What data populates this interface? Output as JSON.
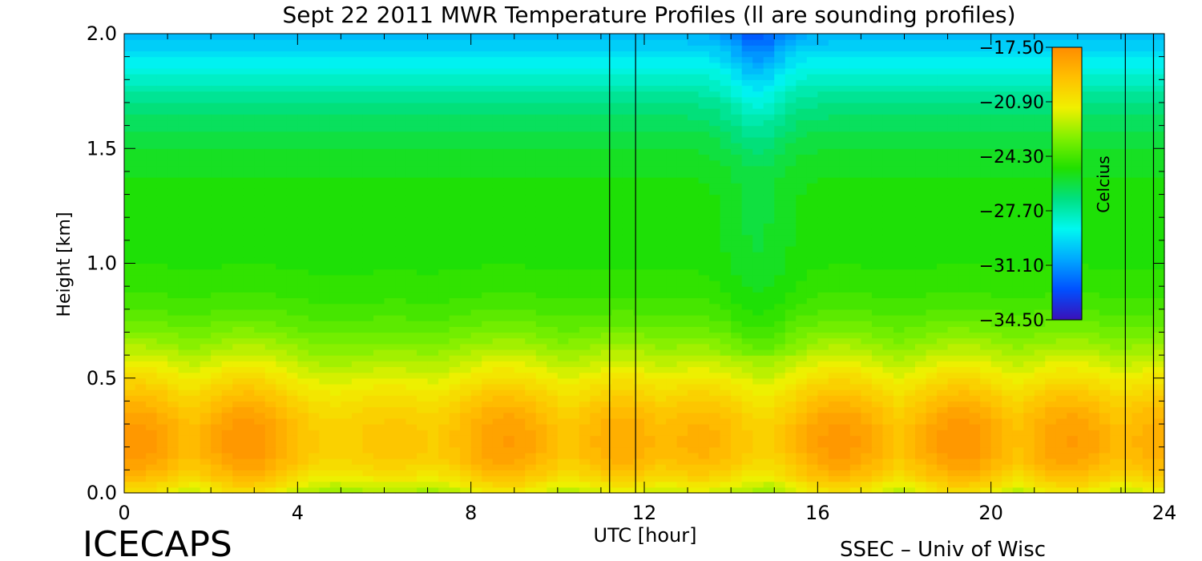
{
  "footer": {
    "left": "ICECAPS",
    "right": "SSEC – Univ of Wisc"
  },
  "chart_data": {
    "type": "heatmap",
    "title": "Sept 22 2011 MWR Temperature Profiles (ll are sounding profiles)",
    "xlabel": "UTC [hour]",
    "ylabel": "Height [km]",
    "xlim": [
      0,
      24
    ],
    "ylim": [
      0,
      2
    ],
    "x_ticks": [
      0,
      4,
      8,
      12,
      16,
      20,
      24
    ],
    "y_ticks": [
      0.0,
      0.5,
      1.0,
      1.5,
      2.0
    ],
    "y_tick_labels": [
      "0.0",
      "0.5",
      "1.0",
      "1.5",
      "2.0"
    ],
    "colorbar": {
      "label": "Celcius",
      "range": [
        -34.5,
        -17.5
      ],
      "tick_labels": [
        "-17.50",
        "-20.90",
        "-24.30",
        "-27.70",
        "-31.10",
        "-34.50"
      ],
      "tick_values": [
        -17.5,
        -20.9,
        -24.3,
        -27.7,
        -31.1,
        -34.5
      ]
    },
    "sounding_times": [
      11.2,
      11.8,
      23.1,
      23.75
    ],
    "colors": {
      "stops": [
        "#3a10b8",
        "#0050ff",
        "#00a8ff",
        "#00f8f0",
        "#00e080",
        "#20e000",
        "#80f000",
        "#f0f000",
        "#ffc000",
        "#ff8c00"
      ]
    }
  }
}
